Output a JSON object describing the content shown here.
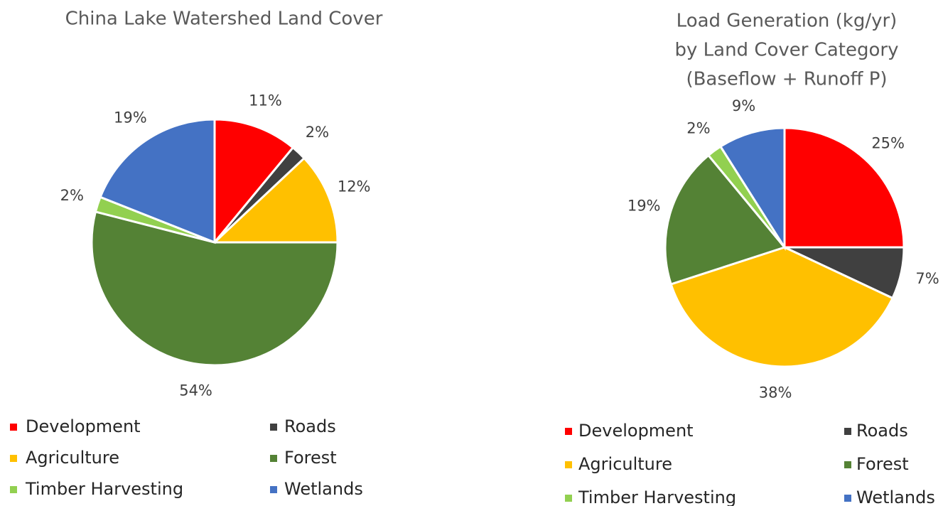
{
  "chart_data": [
    {
      "type": "pie",
      "title": [
        "China Lake Watershed Land Cover"
      ],
      "categories": [
        "Development",
        "Roads",
        "Agriculture",
        "Forest",
        "Timber Harvesting",
        "Wetlands"
      ],
      "values": [
        11,
        2,
        12,
        54,
        2,
        19
      ],
      "value_labels": [
        "11%",
        "2%",
        "12%",
        "54%",
        "2%",
        "19%"
      ],
      "colors": [
        "#ff0000",
        "#404040",
        "#ffc000",
        "#548235",
        "#92d050",
        "#4472c4"
      ]
    },
    {
      "type": "pie",
      "title": [
        "Load Generation (kg/yr)",
        "by Land Cover Category",
        "(Baseflow + Runoff P)"
      ],
      "categories": [
        "Development",
        "Roads",
        "Agriculture",
        "Forest",
        "Timber Harvesting",
        "Wetlands"
      ],
      "values": [
        25,
        7,
        38,
        19,
        2,
        9
      ],
      "value_labels": [
        "25%",
        "7%",
        "38%",
        "19%",
        "2%",
        "9%"
      ],
      "colors": [
        "#ff0000",
        "#404040",
        "#ffc000",
        "#548235",
        "#92d050",
        "#4472c4"
      ]
    }
  ]
}
